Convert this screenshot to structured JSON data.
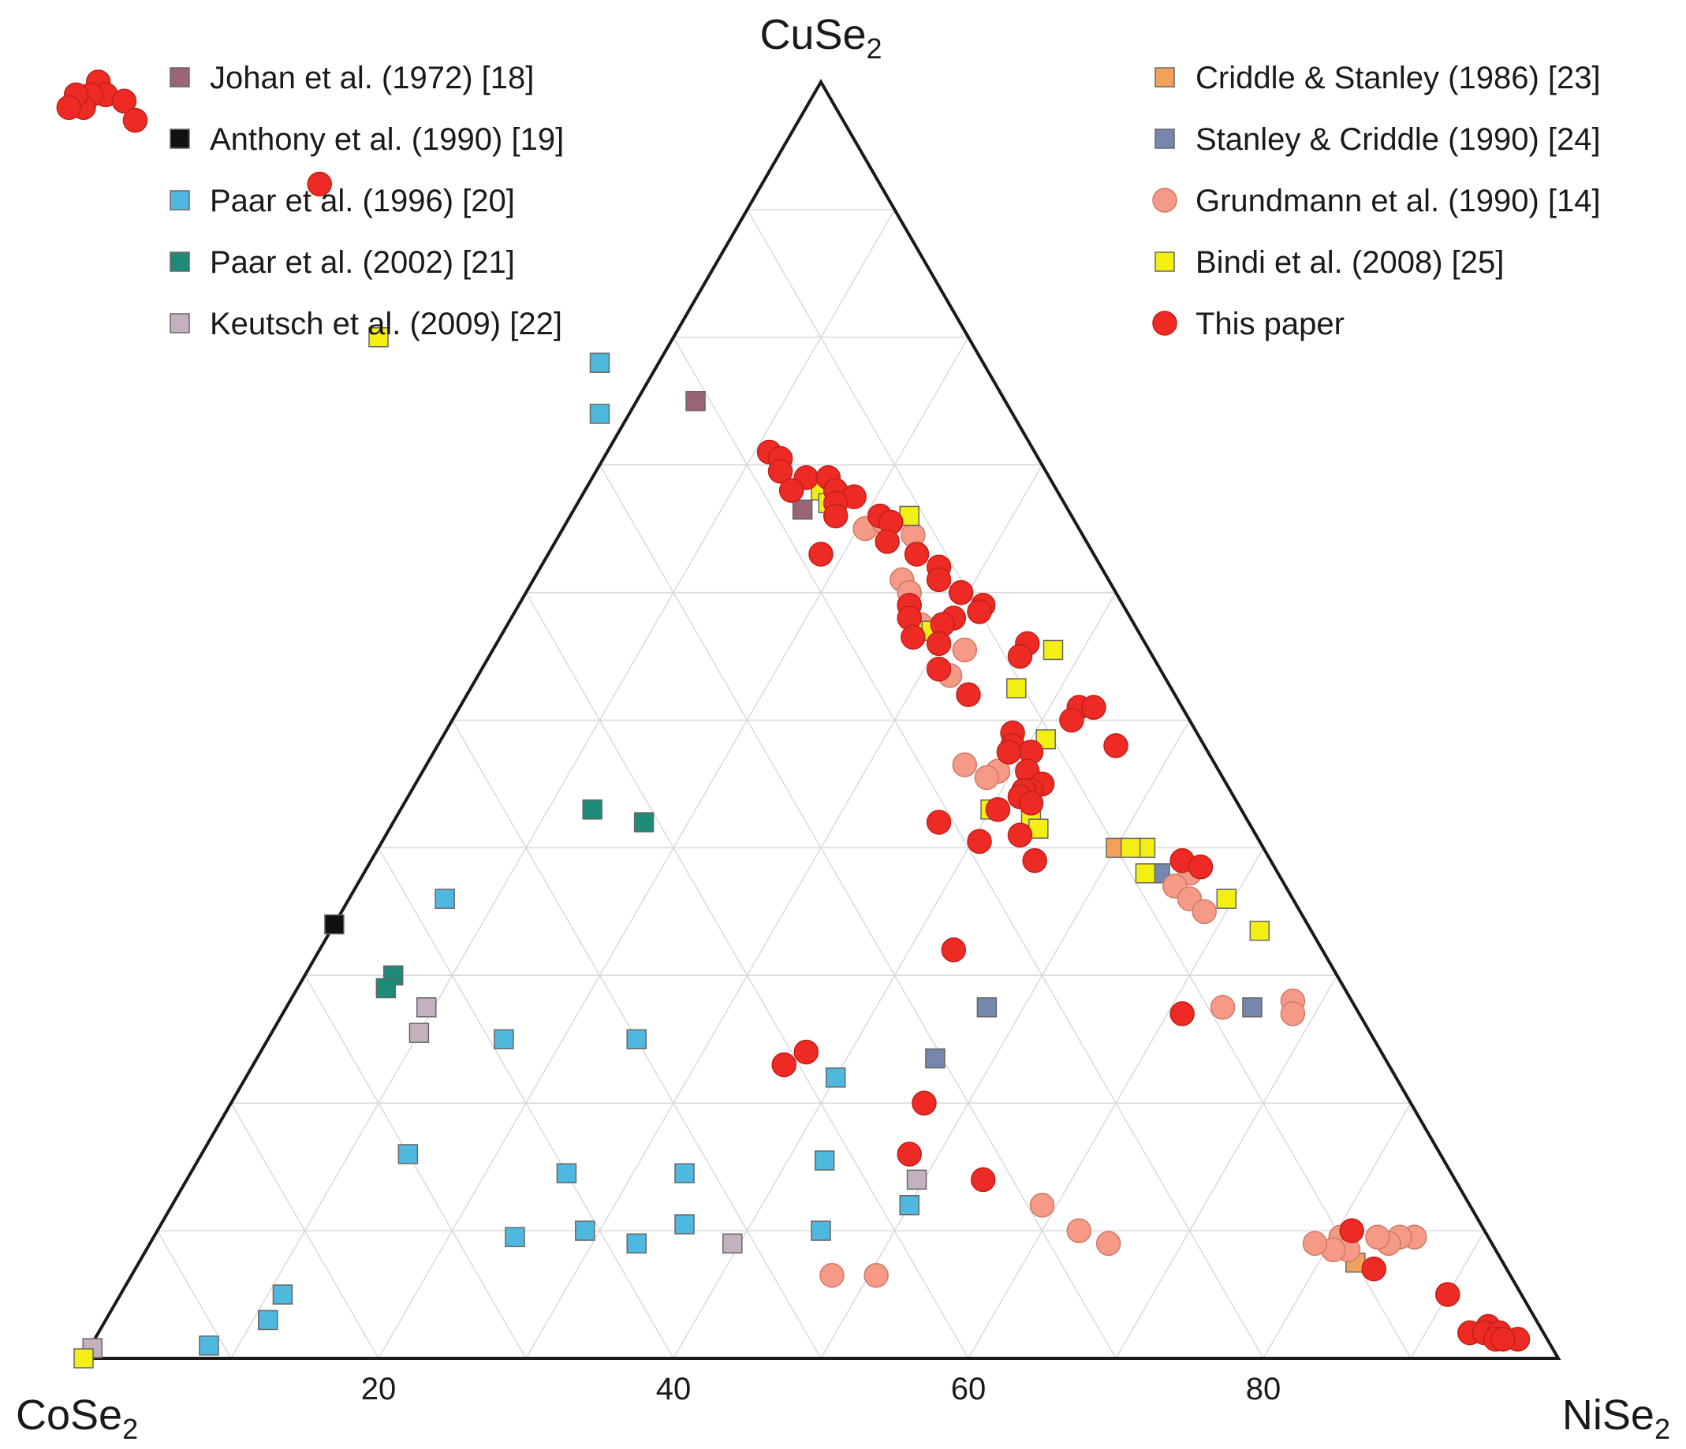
{
  "chart_data": {
    "type": "ternary",
    "title": "",
    "vertices": {
      "top": {
        "name": "CuSe",
        "subscript": "2"
      },
      "left": {
        "name": "CoSe",
        "subscript": "2"
      },
      "right": {
        "name": "NiSe",
        "subscript": "2"
      }
    },
    "bottom_axis": {
      "component": "NiSe2",
      "ticks": [
        20,
        40,
        60,
        80
      ]
    },
    "grid_step": 10,
    "legend": {
      "left": [
        {
          "key": "johan",
          "label": "Johan et al. (1972) [18]"
        },
        {
          "key": "anthony",
          "label": "Anthony et al. (1990) [19]"
        },
        {
          "key": "paar1996",
          "label": "Paar et al. (1996) [20]"
        },
        {
          "key": "paar2002",
          "label": "Paar et al. (2002) [21]"
        },
        {
          "key": "keutsch",
          "label": "Keutsch et al. (2009) [22]"
        }
      ],
      "right": [
        {
          "key": "criddle",
          "label": "Criddle & Stanley (1986) [23]"
        },
        {
          "key": "stanley",
          "label": "Stanley & Criddle (1990) [24]"
        },
        {
          "key": "grundmann",
          "label": "Grundmann et al. (1990) [14]"
        },
        {
          "key": "bindi",
          "label": "Bindi et al. (2008) [25]"
        },
        {
          "key": "thispaper",
          "label": "This paper"
        }
      ]
    },
    "series": [
      {
        "key": "johan",
        "name": "Johan et al. (1972) [18]",
        "marker": "square",
        "color": "#9b6474",
        "points": [
          [
            21,
            75
          ],
          [
            18,
            66.5
          ]
        ]
      },
      {
        "key": "anthony",
        "name": "Anthony et al. (1990) [19]",
        "marker": "square",
        "color": "#111111",
        "points": [
          [
            66,
            34
          ]
        ]
      },
      {
        "key": "paar1996",
        "name": "Paar et al. (1996) [20]",
        "marker": "square",
        "color": "#4fb8df",
        "points": [
          [
            26,
            78
          ],
          [
            28,
            74
          ],
          [
            57.5,
            36
          ],
          [
            59,
            25
          ],
          [
            50,
            25
          ],
          [
            38,
            22
          ],
          [
            42,
            15.5
          ],
          [
            70,
            16
          ],
          [
            60,
            14.5
          ],
          [
            61,
            10
          ],
          [
            54,
            10.5
          ],
          [
            52,
            14.5
          ],
          [
            38,
            12
          ],
          [
            45,
            10
          ],
          [
            58,
            9
          ],
          [
            66,
            9.5
          ],
          [
            84,
            5
          ],
          [
            86,
            3
          ],
          [
            91,
            1
          ]
        ]
      },
      {
        "key": "paar2002",
        "name": "Paar et al. (2002) [21]",
        "marker": "square",
        "color": "#1e8a78",
        "points": [
          [
            44,
            43
          ],
          [
            41,
            42
          ],
          [
            64,
            30
          ],
          [
            65,
            29
          ]
        ]
      },
      {
        "key": "keutsch",
        "name": "Keutsch et al. (2009) [22]",
        "marker": "square",
        "color": "#c4b1bf",
        "points": [
          [
            63,
            27.5
          ],
          [
            64.5,
            25.5
          ],
          [
            36.5,
            14
          ],
          [
            51.5,
            9
          ],
          [
            99,
            0.8
          ]
        ]
      },
      {
        "key": "criddle",
        "name": "Criddle & Stanley (1986) [23]",
        "marker": "square",
        "color": "#f3a15a",
        "points": [
          [
            10,
            40
          ],
          [
            10,
            7.5
          ]
        ]
      },
      {
        "key": "stanley",
        "name": "Stanley & Criddle (1990) [24]",
        "marker": "square",
        "color": "#7786ad",
        "points": [
          [
            25,
            27.5
          ],
          [
            30.5,
            23.5
          ],
          [
            7,
            27.5
          ],
          [
            8,
            38
          ]
        ]
      },
      {
        "key": "grundmann",
        "name": "Grundmann et al. (1990) [14]",
        "marker": "circle",
        "color": "#f59a86",
        "points": [
          [
            14.5,
            65
          ],
          [
            13,
            65.5
          ],
          [
            11.5,
            64.5
          ],
          [
            14,
            61
          ],
          [
            14,
            60
          ],
          [
            14.5,
            57.5
          ],
          [
            12.5,
            55.5
          ],
          [
            14.5,
            53.5
          ],
          [
            17,
            46.5
          ],
          [
            15,
            46
          ],
          [
            16,
            45.5
          ],
          [
            6,
            38
          ],
          [
            7.5,
            37
          ],
          [
            7,
            36
          ],
          [
            6.5,
            35
          ],
          [
            4,
            28
          ],
          [
            4.5,
            27
          ],
          [
            9,
            27.5
          ],
          [
            29,
            12
          ],
          [
            27.5,
            10
          ],
          [
            26,
            9
          ],
          [
            10,
            9.5
          ],
          [
            10,
            8.5
          ],
          [
            11,
            8.5
          ],
          [
            12,
            9
          ],
          [
            5,
            9.5
          ],
          [
            6,
            9.5
          ],
          [
            7,
            9
          ],
          [
            7.5,
            9.5
          ],
          [
            46,
            6.5
          ],
          [
            43,
            6.5
          ]
        ]
      },
      {
        "key": "bindi",
        "name": "Bindi et al. (2008) [25]",
        "marker": "square",
        "color": "#f4ef12",
        "points": [
          [
            40,
            80
          ],
          [
            16,
            68
          ],
          [
            16,
            67
          ],
          [
            11,
            66
          ],
          [
            15,
            57
          ],
          [
            14,
            57
          ],
          [
            6.5,
            55.5
          ],
          [
            10.5,
            52.5
          ],
          [
            10.5,
            48.5
          ],
          [
            17,
            43
          ],
          [
            14.5,
            42.5
          ],
          [
            14.5,
            41.5
          ],
          [
            8,
            40
          ],
          [
            9,
            40
          ],
          [
            9,
            38
          ],
          [
            4.5,
            36
          ],
          [
            3.5,
            33.5
          ],
          [
            100,
            0
          ]
        ]
      },
      {
        "key": "thispaper",
        "name": "This paper",
        "marker": "circle",
        "color": "#ee2a24",
        "points": [
          [
            49,
            100
          ],
          [
            49,
            99
          ],
          [
            50,
            99
          ],
          [
            51,
            98
          ],
          [
            51,
            99
          ],
          [
            48,
            98.5
          ],
          [
            48,
            97
          ],
          [
            52,
            98
          ],
          [
            38,
            92
          ],
          [
            18,
            71
          ],
          [
            17.5,
            70.5
          ],
          [
            18,
            69.5
          ],
          [
            16.5,
            69
          ],
          [
            18,
            68
          ],
          [
            15,
            69
          ],
          [
            15,
            68
          ],
          [
            14,
            67.5
          ],
          [
            15.5,
            67
          ],
          [
            16,
            66
          ],
          [
            13,
            66
          ],
          [
            12.5,
            65.5
          ],
          [
            13.5,
            64
          ],
          [
            18.5,
            63
          ],
          [
            12,
            63
          ],
          [
            11,
            62
          ],
          [
            11.5,
            61
          ],
          [
            10.5,
            60
          ],
          [
            9.5,
            59
          ],
          [
            10,
            58.5
          ],
          [
            12,
            58
          ],
          [
            13,
            57.5
          ],
          [
            14.5,
            59
          ],
          [
            15,
            58
          ],
          [
            15.5,
            56.5
          ],
          [
            14,
            56
          ],
          [
            8,
            56
          ],
          [
            9,
            55
          ],
          [
            15,
            54
          ],
          [
            14,
            52
          ],
          [
            7,
            51
          ],
          [
            6,
            51
          ],
          [
            8,
            50
          ],
          [
            6,
            48
          ],
          [
            12.5,
            49
          ],
          [
            13,
            48
          ],
          [
            12,
            47.5
          ],
          [
            13.5,
            47.5
          ],
          [
            13,
            46
          ],
          [
            12.5,
            45
          ],
          [
            13.5,
            44.5
          ],
          [
            14,
            44.5
          ],
          [
            14.5,
            44
          ],
          [
            14,
            43.5
          ],
          [
            16.5,
            43
          ],
          [
            21,
            42
          ],
          [
            16,
            41
          ],
          [
            19,
            40.5
          ],
          [
            16,
            39
          ],
          [
            6,
            39
          ],
          [
            5,
            38.5
          ],
          [
            25,
            32
          ],
          [
            12,
            27
          ],
          [
            39,
            24
          ],
          [
            41,
            23
          ],
          [
            33,
            20
          ],
          [
            36,
            16
          ],
          [
            32,
            14
          ],
          [
            9,
            10
          ],
          [
            9,
            7
          ],
          [
            5,
            5
          ],
          [
            5,
            2
          ],
          [
            3.5,
            2.5
          ],
          [
            4,
            2
          ],
          [
            3,
            2
          ],
          [
            3.5,
            1.5
          ],
          [
            2,
            1.5
          ],
          [
            3,
            1.5
          ]
        ]
      }
    ]
  }
}
